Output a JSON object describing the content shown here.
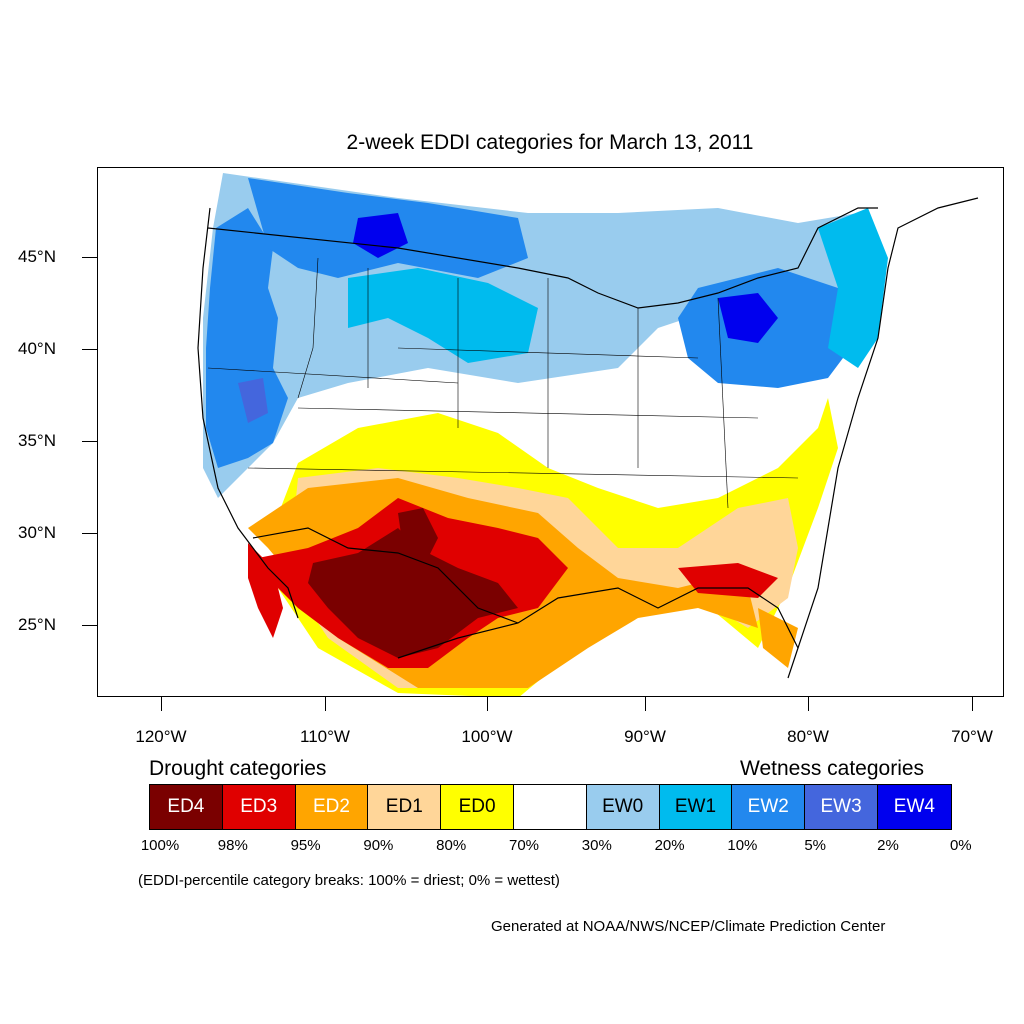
{
  "title": "2-week EDDI categories for March 13, 2011",
  "lat_labels": [
    "45°N",
    "40°N",
    "35°N",
    "30°N",
    "25°N"
  ],
  "lon_labels": [
    "120°W",
    "110°W",
    "100°W",
    "90°W",
    "80°W",
    "70°W"
  ],
  "drought_title": "Drought categories",
  "wetness_title": "Wetness categories",
  "legend": [
    {
      "label": "ED4",
      "color": "#7a0000",
      "text_color": "#ffffff"
    },
    {
      "label": "ED3",
      "color": "#e00000",
      "text_color": "#ffffff"
    },
    {
      "label": "ED2",
      "color": "#ffa500",
      "text_color": "#ffffff"
    },
    {
      "label": "ED1",
      "color": "#ffd699",
      "text_color": "#000000"
    },
    {
      "label": "ED0",
      "color": "#ffff00",
      "text_color": "#000000"
    },
    {
      "label": "",
      "color": "#ffffff",
      "text_color": "#000000"
    },
    {
      "label": "EW0",
      "color": "#99ccee",
      "text_color": "#000000"
    },
    {
      "label": "EW1",
      "color": "#00bbee",
      "text_color": "#000000"
    },
    {
      "label": "EW2",
      "color": "#2288ee",
      "text_color": "#ffffff"
    },
    {
      "label": "EW3",
      "color": "#4466dd",
      "text_color": "#ffffff"
    },
    {
      "label": "EW4",
      "color": "#0000ee",
      "text_color": "#ffffff"
    }
  ],
  "percent_labels": [
    "100%",
    "98%",
    "95%",
    "90%",
    "80%",
    "70%",
    "30%",
    "20%",
    "10%",
    "5%",
    "2%",
    "0%"
  ],
  "note": "(EDDI-percentile category breaks: 100% = driest; 0% = wettest)",
  "credit": "Generated at NOAA/NWS/NCEP/Climate Prediction Center"
}
